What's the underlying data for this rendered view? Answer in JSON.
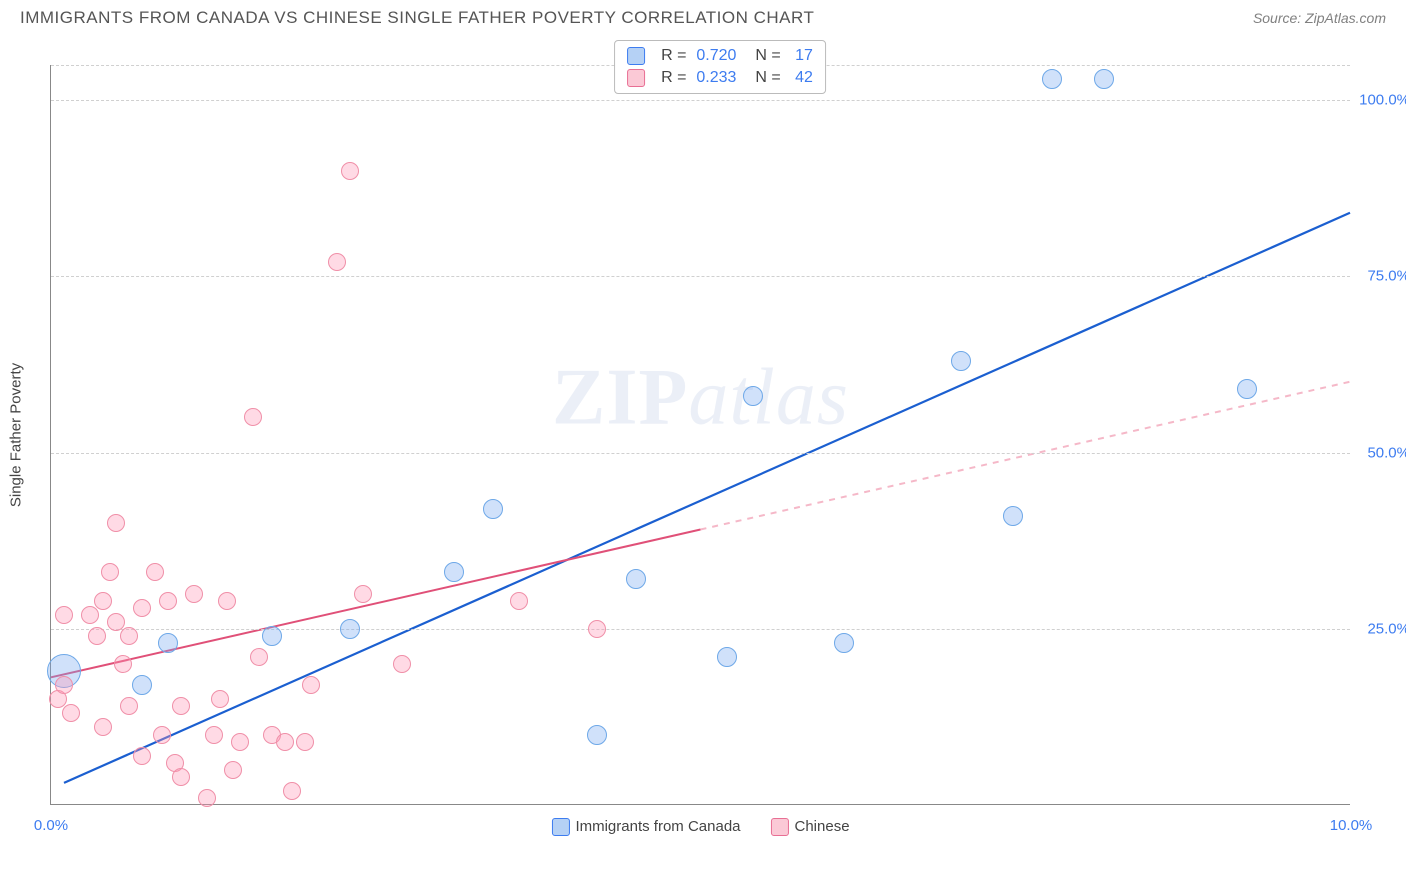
{
  "header": {
    "title": "IMMIGRANTS FROM CANADA VS CHINESE SINGLE FATHER POVERTY CORRELATION CHART",
    "source": "Source: ZipAtlas.com"
  },
  "chart": {
    "type": "scatter",
    "y_axis_label": "Single Father Poverty",
    "xlim": [
      0,
      10
    ],
    "ylim": [
      0,
      105
    ],
    "x_ticks": [
      {
        "pos": 0,
        "label": "0.0%"
      },
      {
        "pos": 10,
        "label": "10.0%"
      }
    ],
    "y_ticks": [
      {
        "pos": 25,
        "label": "25.0%"
      },
      {
        "pos": 50,
        "label": "50.0%"
      },
      {
        "pos": 75,
        "label": "75.0%"
      },
      {
        "pos": 100,
        "label": "100.0%"
      }
    ],
    "y_gridlines": [
      25,
      50,
      75,
      100,
      105
    ],
    "series": [
      {
        "name": "Immigrants from Canada",
        "fill_color": "rgba(120,170,240,0.35)",
        "stroke_color": "#6ea8e8",
        "legend_swatch_fill": "#b5d1f5",
        "legend_swatch_stroke": "#3d7cf0",
        "R": "0.720",
        "N": "17",
        "line_color": "#1b5fd0",
        "line_dash_after_x": null,
        "line_width": 2.2,
        "trend": {
          "x1": 0.1,
          "y1": 3,
          "x2": 10,
          "y2": 84
        },
        "point_radius": 10,
        "points": [
          {
            "x": 0.1,
            "y": 19,
            "r": 17
          },
          {
            "x": 0.9,
            "y": 23
          },
          {
            "x": 0.7,
            "y": 17
          },
          {
            "x": 1.7,
            "y": 24
          },
          {
            "x": 2.3,
            "y": 25
          },
          {
            "x": 3.1,
            "y": 33
          },
          {
            "x": 3.4,
            "y": 42
          },
          {
            "x": 4.2,
            "y": 10
          },
          {
            "x": 4.5,
            "y": 32
          },
          {
            "x": 5.2,
            "y": 21
          },
          {
            "x": 5.4,
            "y": 58
          },
          {
            "x": 6.1,
            "y": 23
          },
          {
            "x": 7.0,
            "y": 63
          },
          {
            "x": 7.4,
            "y": 41
          },
          {
            "x": 7.7,
            "y": 103
          },
          {
            "x": 8.1,
            "y": 103
          },
          {
            "x": 9.2,
            "y": 59
          }
        ]
      },
      {
        "name": "Chinese",
        "fill_color": "rgba(255,150,180,0.35)",
        "stroke_color": "#f08fa8",
        "legend_swatch_fill": "#fbc9d6",
        "legend_swatch_stroke": "#e86f94",
        "R": "0.233",
        "N": "42",
        "line_color": "#e05078",
        "line_dash_after_x": 5.0,
        "line_dash_color": "#f5b8c8",
        "line_width": 2.0,
        "trend": {
          "x1": 0.0,
          "y1": 18,
          "x2": 10,
          "y2": 60
        },
        "point_radius": 9,
        "points": [
          {
            "x": 0.05,
            "y": 15
          },
          {
            "x": 0.1,
            "y": 17
          },
          {
            "x": 0.1,
            "y": 27
          },
          {
            "x": 0.15,
            "y": 13
          },
          {
            "x": 0.3,
            "y": 27
          },
          {
            "x": 0.35,
            "y": 24
          },
          {
            "x": 0.4,
            "y": 29
          },
          {
            "x": 0.4,
            "y": 11
          },
          {
            "x": 0.45,
            "y": 33
          },
          {
            "x": 0.5,
            "y": 40
          },
          {
            "x": 0.5,
            "y": 26
          },
          {
            "x": 0.55,
            "y": 20
          },
          {
            "x": 0.6,
            "y": 24
          },
          {
            "x": 0.6,
            "y": 14
          },
          {
            "x": 0.7,
            "y": 7
          },
          {
            "x": 0.7,
            "y": 28
          },
          {
            "x": 0.8,
            "y": 33
          },
          {
            "x": 0.85,
            "y": 10
          },
          {
            "x": 0.9,
            "y": 29
          },
          {
            "x": 0.95,
            "y": 6
          },
          {
            "x": 1.0,
            "y": 4
          },
          {
            "x": 1.0,
            "y": 14
          },
          {
            "x": 1.1,
            "y": 30
          },
          {
            "x": 1.2,
            "y": 1
          },
          {
            "x": 1.25,
            "y": 10
          },
          {
            "x": 1.3,
            "y": 15
          },
          {
            "x": 1.35,
            "y": 29
          },
          {
            "x": 1.4,
            "y": 5
          },
          {
            "x": 1.45,
            "y": 9
          },
          {
            "x": 1.55,
            "y": 55
          },
          {
            "x": 1.6,
            "y": 21
          },
          {
            "x": 1.7,
            "y": 10
          },
          {
            "x": 1.8,
            "y": 9
          },
          {
            "x": 1.85,
            "y": 2
          },
          {
            "x": 1.95,
            "y": 9
          },
          {
            "x": 2.0,
            "y": 17
          },
          {
            "x": 2.3,
            "y": 90
          },
          {
            "x": 2.2,
            "y": 77
          },
          {
            "x": 2.4,
            "y": 30
          },
          {
            "x": 2.7,
            "y": 20
          },
          {
            "x": 3.6,
            "y": 29
          },
          {
            "x": 4.2,
            "y": 25
          }
        ]
      }
    ],
    "watermark": {
      "bold": "ZIP",
      "italic": "atlas"
    }
  }
}
